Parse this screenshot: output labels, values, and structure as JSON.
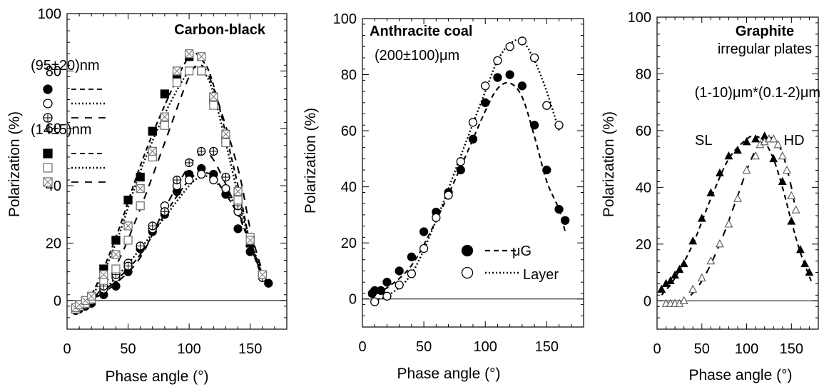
{
  "chart_data": [
    {
      "type": "scatter",
      "title": "Carbon-black",
      "xlabel": "Phase angle (°)",
      "ylabel": "Polarization (%)",
      "xlim": [
        0,
        180
      ],
      "ylim": [
        -10,
        100
      ],
      "xticks": [
        0,
        50,
        100,
        150
      ],
      "yticks": [
        0,
        20,
        40,
        60,
        80,
        100
      ],
      "legend_groups": [
        "(95±20)nm",
        "(14±5)nm"
      ],
      "series": [
        {
          "group": 0,
          "marker": "filled-circle",
          "line": "dashed",
          "x": [
            7,
            10,
            15,
            20,
            30,
            40,
            50,
            60,
            70,
            80,
            90,
            100,
            110,
            120,
            130,
            140,
            150,
            160,
            165
          ],
          "y": [
            -3.5,
            -3,
            -2,
            -1,
            2,
            5,
            10,
            18,
            24,
            30,
            38,
            44,
            46,
            44,
            37,
            25,
            17,
            8,
            6
          ]
        },
        {
          "group": 0,
          "marker": "open-circle",
          "line": "dotted",
          "x": [
            7,
            10,
            15,
            20,
            30,
            40,
            50,
            60,
            70,
            80,
            90,
            100,
            110,
            120,
            130,
            140,
            150,
            160
          ],
          "y": [
            -3,
            -2.5,
            -1.5,
            0,
            4,
            8,
            13,
            19,
            25,
            33,
            40,
            42,
            44,
            42,
            39,
            31,
            22,
            9
          ]
        },
        {
          "group": 0,
          "marker": "cross-circle",
          "line": "longdash",
          "x": [
            7,
            10,
            15,
            20,
            30,
            40,
            50,
            60,
            70,
            80,
            90,
            100,
            110,
            120,
            130,
            140,
            150,
            160
          ],
          "y": [
            -2.5,
            -2,
            -1,
            0.5,
            5,
            9,
            12,
            19,
            26,
            31,
            42,
            48,
            52,
            52,
            43,
            33,
            21,
            8
          ]
        },
        {
          "group": 1,
          "marker": "filled-square",
          "line": "dashed",
          "x": [
            7,
            10,
            15,
            20,
            30,
            40,
            50,
            60,
            70,
            80,
            90,
            100,
            110,
            120,
            130,
            140,
            150,
            160
          ],
          "y": [
            -3,
            -2,
            -1,
            1,
            11,
            21,
            35,
            43,
            59,
            72,
            78,
            85,
            80,
            70,
            56,
            36,
            20,
            9
          ]
        },
        {
          "group": 1,
          "marker": "open-square",
          "line": "dotted",
          "x": [
            7,
            10,
            15,
            20,
            30,
            40,
            50,
            60,
            70,
            80,
            90,
            100,
            110,
            120,
            130,
            140,
            150,
            160
          ],
          "y": [
            -3,
            -2,
            -1,
            0.5,
            7,
            11,
            21,
            33,
            50,
            61,
            76,
            80,
            80,
            68,
            55,
            35,
            22,
            9
          ]
        },
        {
          "group": 1,
          "marker": "cross-square",
          "line": "longdash",
          "x": [
            7,
            10,
            15,
            20,
            30,
            40,
            50,
            60,
            70,
            80,
            90,
            100,
            110,
            120,
            130,
            140,
            150,
            160
          ],
          "y": [
            -2.5,
            -1.5,
            0,
            1.5,
            9,
            16,
            26,
            39,
            52,
            64,
            80,
            86,
            85,
            71,
            58,
            38,
            21,
            9
          ]
        }
      ],
      "curves": [
        {
          "style": "dashed",
          "x": [
            5,
            20,
            40,
            60,
            80,
            100,
            110,
            120,
            140,
            150,
            160,
            165
          ],
          "y": [
            -4,
            0,
            7,
            16,
            30,
            42,
            44,
            43,
            30,
            19,
            9,
            6
          ]
        },
        {
          "style": "dotted",
          "x": [
            5,
            20,
            40,
            60,
            80,
            100,
            110,
            120,
            140,
            150,
            160
          ],
          "y": [
            -4,
            -0.5,
            8,
            18,
            29,
            40,
            43,
            42,
            32,
            21,
            9
          ]
        },
        {
          "style": "longdash",
          "x": [
            5,
            20,
            40,
            60,
            80,
            100,
            110,
            120,
            140,
            150,
            160
          ],
          "y": [
            -3,
            0,
            6,
            15,
            32,
            47,
            51,
            49,
            31,
            20,
            9
          ]
        },
        {
          "style": "dashed",
          "x": [
            5,
            20,
            40,
            60,
            80,
            100,
            110,
            120,
            140,
            150,
            160
          ],
          "y": [
            -4,
            2,
            22,
            47,
            68,
            85,
            84,
            75,
            40,
            20,
            8
          ]
        },
        {
          "style": "dotted",
          "x": [
            5,
            20,
            40,
            60,
            80,
            100,
            110,
            120,
            140,
            150,
            160
          ],
          "y": [
            -4,
            1,
            20,
            45,
            65,
            80,
            80,
            72,
            37,
            21,
            9
          ]
        },
        {
          "style": "longdash",
          "x": [
            5,
            20,
            40,
            60,
            80,
            100,
            110,
            120,
            140,
            150,
            160
          ],
          "y": [
            -3,
            0,
            12,
            32,
            55,
            78,
            82,
            74,
            46,
            25,
            10
          ]
        }
      ]
    },
    {
      "type": "scatter",
      "title": "Anthracite coal",
      "subtitle": "(200±100)μm",
      "xlabel": "Phase angle (°)",
      "ylabel": "Polarization (%)",
      "xlim": [
        0,
        180
      ],
      "ylim": [
        -10,
        100
      ],
      "xticks": [
        0,
        50,
        100,
        150
      ],
      "yticks": [
        0,
        20,
        40,
        60,
        80,
        100
      ],
      "series": [
        {
          "name": "μG",
          "marker": "filled-circle",
          "line": "dashed",
          "x": [
            8,
            10,
            15,
            20,
            30,
            40,
            50,
            60,
            70,
            80,
            90,
            100,
            110,
            120,
            130,
            140,
            150,
            160,
            165
          ],
          "y": [
            2,
            3,
            3,
            6,
            10,
            15,
            24,
            31,
            38,
            46,
            57,
            70,
            79,
            80,
            76,
            62,
            46,
            32,
            28
          ]
        },
        {
          "name": "Layer",
          "marker": "open-circle",
          "line": "dotted",
          "x": [
            10,
            20,
            30,
            40,
            50,
            60,
            70,
            80,
            90,
            100,
            110,
            120,
            130,
            140,
            150,
            160
          ],
          "y": [
            -1,
            1,
            5,
            9,
            18,
            29,
            37,
            49,
            63,
            76,
            85,
            90,
            92,
            86,
            69,
            62
          ]
        }
      ],
      "curves": [
        {
          "style": "dashed",
          "x": [
            5,
            20,
            40,
            60,
            80,
            100,
            110,
            120,
            130,
            140,
            150,
            160,
            165
          ],
          "y": [
            1,
            4,
            12,
            28,
            47,
            67,
            75,
            77,
            72,
            58,
            42,
            32,
            24
          ]
        },
        {
          "style": "dotted",
          "x": [
            10,
            20,
            40,
            60,
            80,
            100,
            110,
            120,
            130,
            140,
            150,
            160
          ],
          "y": [
            0,
            1,
            9,
            28,
            51,
            74,
            85,
            91,
            92,
            85,
            74,
            60
          ]
        }
      ]
    },
    {
      "type": "scatter",
      "title": "Graphite",
      "subtitle": "irregular plates",
      "size_label": "(1-10)μm*(0.1-2)μm",
      "xlabel": "Phase angle (°)",
      "ylabel": "Polarization (%)",
      "xlim": [
        0,
        180
      ],
      "ylim": [
        -10,
        100
      ],
      "xticks": [
        0,
        50,
        100,
        150
      ],
      "yticks": [
        0,
        20,
        40,
        60,
        80,
        100
      ],
      "annotations": [
        {
          "text": "SL",
          "x": 52,
          "y": 55
        },
        {
          "text": "HD",
          "x": 153,
          "y": 55
        }
      ],
      "series": [
        {
          "name": "SL",
          "marker": "filled-triangle",
          "line": "dashed",
          "x": [
            5,
            10,
            15,
            20,
            25,
            30,
            40,
            50,
            60,
            70,
            80,
            90,
            100,
            110,
            120,
            130,
            140,
            150,
            160,
            165,
            170
          ],
          "y": [
            4,
            6,
            7,
            9,
            11,
            13,
            21,
            29,
            38,
            45,
            51,
            53,
            56,
            57,
            58,
            50,
            42,
            28,
            18,
            13,
            10
          ]
        },
        {
          "name": "HD",
          "marker": "open-triangle",
          "line": "longdash",
          "x": [
            10,
            15,
            20,
            25,
            30,
            40,
            50,
            60,
            70,
            80,
            90,
            100,
            110,
            115,
            120,
            125,
            130,
            135,
            140,
            145,
            150,
            155
          ],
          "y": [
            -1,
            -1,
            -1,
            -1,
            0,
            4,
            8,
            14,
            20,
            27,
            36,
            46,
            51,
            55,
            56,
            57,
            57,
            55,
            51,
            46,
            37,
            32
          ]
        }
      ],
      "curves": [
        {
          "style": "dashed",
          "x": [
            5,
            20,
            40,
            60,
            80,
            100,
            110,
            120,
            130,
            140,
            150,
            160,
            172
          ],
          "y": [
            2,
            8,
            20,
            36,
            50,
            57,
            58,
            56,
            50,
            40,
            28,
            17,
            7
          ]
        },
        {
          "style": "longdash",
          "x": [
            10,
            30,
            50,
            70,
            90,
            100,
            110,
            120,
            130,
            140,
            150,
            155
          ],
          "y": [
            -1,
            0,
            7,
            20,
            37,
            46,
            53,
            57,
            57,
            52,
            40,
            31
          ]
        }
      ]
    }
  ]
}
